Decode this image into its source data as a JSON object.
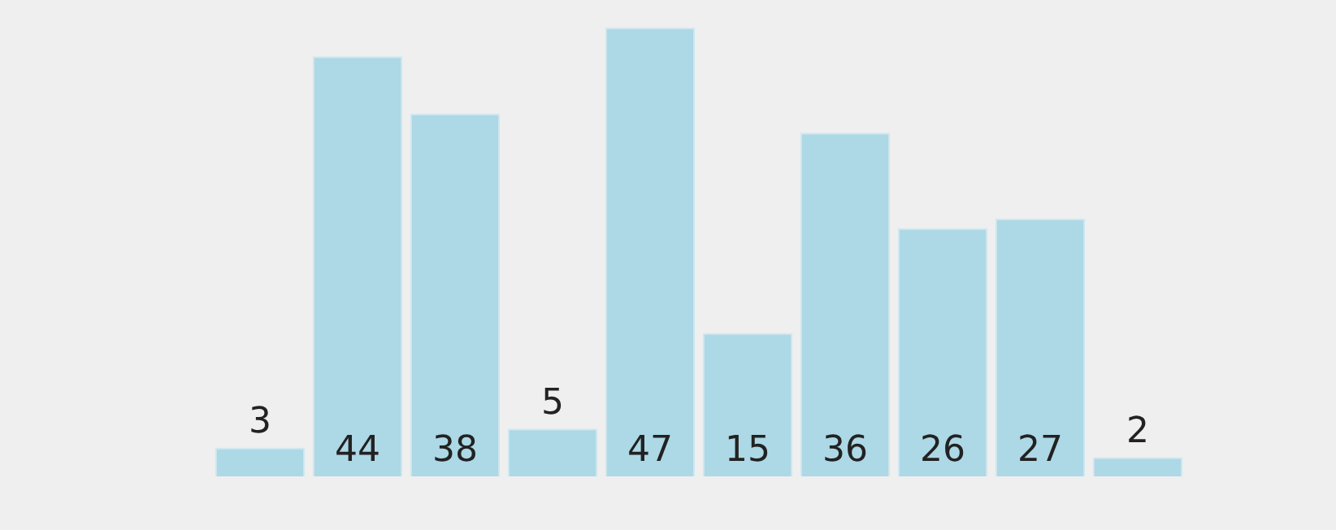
{
  "chart_data": {
    "type": "bar",
    "categories": [
      null,
      null,
      null,
      null,
      null,
      null,
      null,
      null,
      null,
      null
    ],
    "values": [
      3,
      44,
      38,
      5,
      47,
      15,
      36,
      26,
      27,
      2
    ],
    "color": "#add8e6",
    "data_labels": true,
    "grid": false,
    "legend": false
  }
}
